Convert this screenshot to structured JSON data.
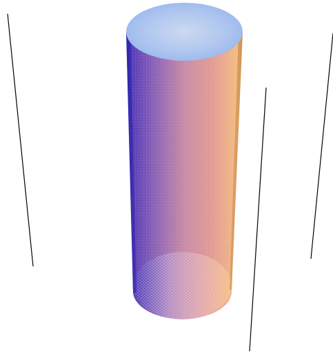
{
  "scene": {
    "object": "cylinder",
    "colors": {
      "background": "#ffffff",
      "top_cap_light": "#c4d6f3",
      "top_cap_mid": "#9fbcec",
      "side_left": "#3a2ec0",
      "side_mid_left": "#8a62b9",
      "side_mid": "#c98aa7",
      "side_mid_right": "#e39c8f",
      "side_right": "#f4c07d",
      "side_edge": "#d7a05e",
      "bottom_left": "#4a3ab8",
      "bottom_right": "#f6c27c",
      "mesh": "#ffffff",
      "frame_line": "#000000"
    }
  }
}
